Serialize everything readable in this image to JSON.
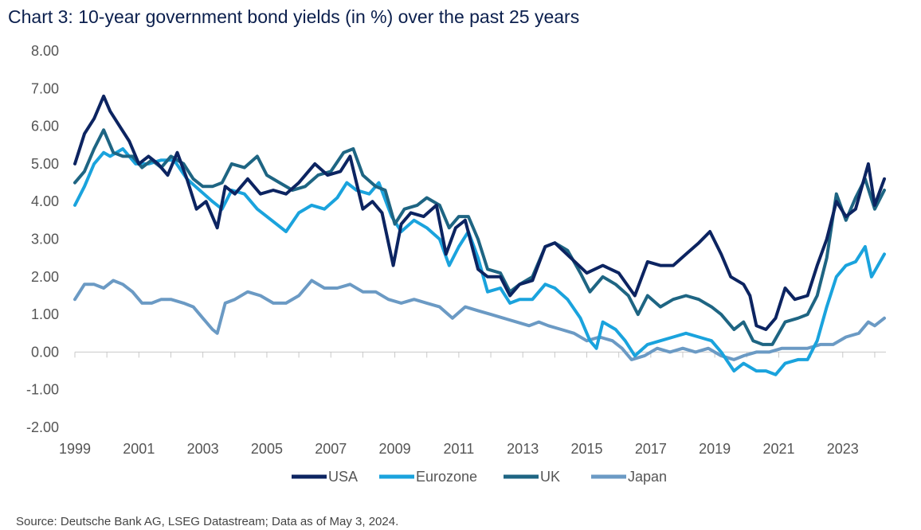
{
  "title": "Chart 3: 10-year government bond yields (in %) over the past 25 years",
  "source": "Source: Deutsche Bank AG, LSEG Datastream; Data as of May 3, 2024.",
  "chart_data": {
    "type": "line",
    "title": "Chart 3: 10-year government bond yields (in %) over the past 25 years",
    "xlabel": "",
    "ylabel": "",
    "xlim": [
      1999.0,
      2024.35
    ],
    "ylim": [
      -2,
      8
    ],
    "y_ticks": [
      "8.00",
      "7.00",
      "6.00",
      "5.00",
      "4.00",
      "3.00",
      "2.00",
      "1.00",
      "0.00",
      "-1.00",
      "-2.00"
    ],
    "x_ticks": [
      "1999",
      "2001",
      "2003",
      "2005",
      "2007",
      "2009",
      "2011",
      "2013",
      "2015",
      "2017",
      "2019",
      "2021",
      "2023"
    ],
    "grid": false,
    "legend": "bottom-center",
    "series": [
      {
        "name": "USA",
        "color": "#0c2461",
        "x": [
          1999.0,
          1999.3,
          1999.6,
          1999.9,
          2000.1,
          2000.4,
          2000.7,
          2001.0,
          2001.3,
          2001.6,
          2001.9,
          2002.2,
          2002.5,
          2002.8,
          2003.1,
          2003.45,
          2003.7,
          2004.0,
          2004.4,
          2004.8,
          2005.2,
          2005.6,
          2006.0,
          2006.5,
          2006.9,
          2007.3,
          2007.6,
          2008.0,
          2008.3,
          2008.6,
          2008.95,
          2009.2,
          2009.5,
          2009.9,
          2010.3,
          2010.6,
          2010.9,
          2011.2,
          2011.6,
          2011.9,
          2012.3,
          2012.6,
          2012.9,
          2013.3,
          2013.7,
          2014.0,
          2014.5,
          2015.0,
          2015.5,
          2016.0,
          2016.5,
          2016.9,
          2017.3,
          2017.7,
          2018.1,
          2018.5,
          2018.85,
          2019.2,
          2019.5,
          2019.9,
          2020.1,
          2020.3,
          2020.6,
          2020.9,
          2021.2,
          2021.5,
          2021.9,
          2022.2,
          2022.5,
          2022.8,
          2023.1,
          2023.4,
          2023.8,
          2024.0,
          2024.3
        ],
        "values": [
          5.0,
          5.8,
          6.2,
          6.8,
          6.4,
          6.0,
          5.6,
          5.0,
          5.2,
          5.0,
          4.7,
          5.3,
          4.6,
          3.8,
          4.0,
          3.3,
          4.4,
          4.2,
          4.6,
          4.2,
          4.3,
          4.2,
          4.5,
          5.0,
          4.7,
          4.8,
          5.2,
          3.8,
          4.0,
          3.7,
          2.3,
          3.4,
          3.7,
          3.6,
          3.9,
          2.6,
          3.3,
          3.5,
          2.2,
          2.0,
          2.0,
          1.5,
          1.8,
          1.9,
          2.8,
          2.9,
          2.5,
          2.1,
          2.3,
          2.1,
          1.5,
          2.4,
          2.3,
          2.3,
          2.6,
          2.9,
          3.2,
          2.6,
          2.0,
          1.8,
          1.5,
          0.7,
          0.6,
          0.9,
          1.7,
          1.4,
          1.5,
          2.3,
          3.0,
          4.0,
          3.6,
          3.8,
          5.0,
          3.9,
          4.6
        ]
      },
      {
        "name": "Eurozone",
        "color": "#1aa3dd",
        "x": [
          1999.0,
          1999.3,
          1999.6,
          1999.9,
          2000.1,
          2000.5,
          2000.9,
          2001.3,
          2001.7,
          2002.1,
          2002.5,
          2002.9,
          2003.3,
          2003.6,
          2003.9,
          2004.3,
          2004.7,
          2005.0,
          2005.3,
          2005.6,
          2006.0,
          2006.4,
          2006.8,
          2007.2,
          2007.5,
          2007.8,
          2008.2,
          2008.5,
          2008.9,
          2009.2,
          2009.6,
          2010.0,
          2010.4,
          2010.7,
          2011.0,
          2011.3,
          2011.6,
          2011.9,
          2012.3,
          2012.6,
          2012.9,
          2013.3,
          2013.7,
          2014.0,
          2014.4,
          2014.8,
          2015.1,
          2015.3,
          2015.5,
          2015.9,
          2016.2,
          2016.5,
          2016.9,
          2017.3,
          2017.7,
          2018.1,
          2018.5,
          2018.9,
          2019.2,
          2019.6,
          2019.9,
          2020.3,
          2020.6,
          2020.9,
          2021.2,
          2021.6,
          2021.9,
          2022.2,
          2022.5,
          2022.8,
          2023.1,
          2023.4,
          2023.7,
          2023.9,
          2024.3
        ],
        "values": [
          3.9,
          4.4,
          5.0,
          5.3,
          5.2,
          5.4,
          5.0,
          5.0,
          5.1,
          5.1,
          4.6,
          4.3,
          4.0,
          3.8,
          4.3,
          4.2,
          3.8,
          3.6,
          3.4,
          3.2,
          3.7,
          3.9,
          3.8,
          4.1,
          4.5,
          4.3,
          4.2,
          4.5,
          3.6,
          3.2,
          3.5,
          3.3,
          3.0,
          2.3,
          2.8,
          3.2,
          2.5,
          1.6,
          1.7,
          1.3,
          1.4,
          1.4,
          1.8,
          1.7,
          1.4,
          0.9,
          0.3,
          0.1,
          0.8,
          0.6,
          0.3,
          -0.1,
          0.2,
          0.3,
          0.4,
          0.5,
          0.4,
          0.3,
          0.0,
          -0.5,
          -0.3,
          -0.5,
          -0.5,
          -0.6,
          -0.3,
          -0.2,
          -0.2,
          0.3,
          1.2,
          2.0,
          2.3,
          2.4,
          2.8,
          2.0,
          2.6
        ]
      },
      {
        "name": "UK",
        "color": "#1e6583",
        "x": [
          1999.0,
          1999.3,
          1999.6,
          1999.9,
          2000.2,
          2000.5,
          2000.8,
          2001.1,
          2001.4,
          2001.7,
          2002.0,
          2002.4,
          2002.7,
          2003.0,
          2003.3,
          2003.6,
          2003.9,
          2004.3,
          2004.7,
          2005.0,
          2005.4,
          2005.8,
          2006.2,
          2006.6,
          2007.0,
          2007.4,
          2007.7,
          2008.0,
          2008.4,
          2008.7,
          2009.0,
          2009.3,
          2009.7,
          2010.0,
          2010.4,
          2010.7,
          2011.0,
          2011.3,
          2011.6,
          2011.9,
          2012.3,
          2012.6,
          2012.9,
          2013.3,
          2013.7,
          2014.0,
          2014.4,
          2014.8,
          2015.1,
          2015.5,
          2015.9,
          2016.3,
          2016.6,
          2016.9,
          2017.3,
          2017.7,
          2018.1,
          2018.5,
          2018.9,
          2019.2,
          2019.6,
          2019.9,
          2020.2,
          2020.5,
          2020.8,
          2021.2,
          2021.6,
          2021.9,
          2022.2,
          2022.5,
          2022.8,
          2023.1,
          2023.4,
          2023.7,
          2024.0,
          2024.3
        ],
        "values": [
          4.5,
          4.8,
          5.4,
          5.9,
          5.3,
          5.2,
          5.2,
          4.9,
          5.1,
          4.9,
          5.2,
          5.0,
          4.6,
          4.4,
          4.4,
          4.5,
          5.0,
          4.9,
          5.2,
          4.7,
          4.5,
          4.3,
          4.4,
          4.7,
          4.8,
          5.3,
          5.4,
          4.7,
          4.4,
          4.3,
          3.4,
          3.8,
          3.9,
          4.1,
          3.9,
          3.3,
          3.6,
          3.6,
          3.0,
          2.2,
          2.1,
          1.6,
          1.8,
          2.0,
          2.8,
          2.9,
          2.7,
          2.1,
          1.6,
          2.0,
          1.8,
          1.5,
          1.0,
          1.5,
          1.2,
          1.4,
          1.5,
          1.4,
          1.2,
          1.0,
          0.6,
          0.8,
          0.3,
          0.2,
          0.2,
          0.8,
          0.9,
          1.0,
          1.5,
          2.5,
          4.2,
          3.5,
          4.1,
          4.6,
          3.8,
          4.3
        ]
      },
      {
        "name": "Japan",
        "color": "#6b9ac4",
        "x": [
          1999.0,
          1999.3,
          1999.6,
          1999.9,
          2000.2,
          2000.5,
          2000.8,
          2001.1,
          2001.4,
          2001.7,
          2002.0,
          2002.4,
          2002.7,
          2003.0,
          2003.3,
          2003.45,
          2003.7,
          2004.0,
          2004.4,
          2004.8,
          2005.2,
          2005.6,
          2006.0,
          2006.4,
          2006.8,
          2007.2,
          2007.6,
          2008.0,
          2008.4,
          2008.8,
          2009.2,
          2009.6,
          2010.0,
          2010.4,
          2010.8,
          2011.2,
          2011.6,
          2012.0,
          2012.4,
          2012.8,
          2013.2,
          2013.5,
          2013.8,
          2014.2,
          2014.6,
          2015.0,
          2015.4,
          2015.8,
          2016.1,
          2016.4,
          2016.8,
          2017.2,
          2017.6,
          2018.0,
          2018.4,
          2018.8,
          2019.2,
          2019.6,
          2019.9,
          2020.3,
          2020.7,
          2021.1,
          2021.5,
          2021.9,
          2022.3,
          2022.7,
          2023.1,
          2023.5,
          2023.8,
          2024.0,
          2024.3
        ],
        "values": [
          1.4,
          1.8,
          1.8,
          1.7,
          1.9,
          1.8,
          1.6,
          1.3,
          1.3,
          1.4,
          1.4,
          1.3,
          1.2,
          0.9,
          0.6,
          0.5,
          1.3,
          1.4,
          1.6,
          1.5,
          1.3,
          1.3,
          1.5,
          1.9,
          1.7,
          1.7,
          1.8,
          1.6,
          1.6,
          1.4,
          1.3,
          1.4,
          1.3,
          1.2,
          0.9,
          1.2,
          1.1,
          1.0,
          0.9,
          0.8,
          0.7,
          0.8,
          0.7,
          0.6,
          0.5,
          0.3,
          0.4,
          0.3,
          0.1,
          -0.2,
          -0.1,
          0.1,
          0.0,
          0.1,
          0.0,
          0.1,
          -0.1,
          -0.2,
          -0.1,
          0.0,
          0.0,
          0.1,
          0.1,
          0.1,
          0.2,
          0.2,
          0.4,
          0.5,
          0.8,
          0.7,
          0.9
        ]
      }
    ]
  }
}
